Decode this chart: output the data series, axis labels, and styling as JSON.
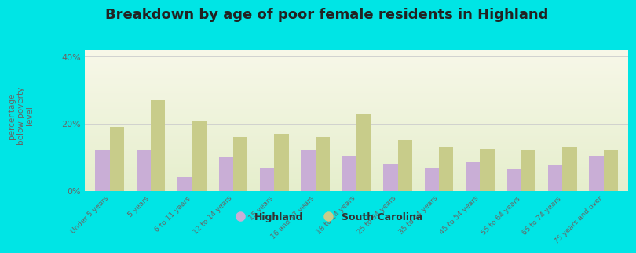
{
  "title": "Breakdown by age of poor female residents in Highland",
  "ylabel": "percentage\nbelow poverty\nlevel",
  "categories": [
    "Under 5 years",
    "5 years",
    "6 to 11 years",
    "12 to 14 years",
    "15 years",
    "16 and 17 years",
    "18 to 24 years",
    "25 to 34 years",
    "35 to 44 years",
    "45 to 54 years",
    "55 to 64 years",
    "65 to 74 years",
    "75 years and over"
  ],
  "highland_values": [
    12.0,
    12.0,
    4.0,
    10.0,
    7.0,
    12.0,
    10.5,
    8.0,
    7.0,
    8.5,
    6.5,
    7.5,
    10.5
  ],
  "sc_values": [
    19.0,
    27.0,
    21.0,
    16.0,
    17.0,
    16.0,
    23.0,
    15.0,
    13.0,
    12.5,
    12.0,
    13.0,
    12.0
  ],
  "highland_color": "#c9aed6",
  "sc_color": "#c8cc8a",
  "outer_bg": "#00e5e5",
  "ylim": [
    0,
    42
  ],
  "bar_width": 0.35,
  "title_fontsize": 13,
  "legend_highland": "Highland",
  "legend_sc": "South Carolina"
}
